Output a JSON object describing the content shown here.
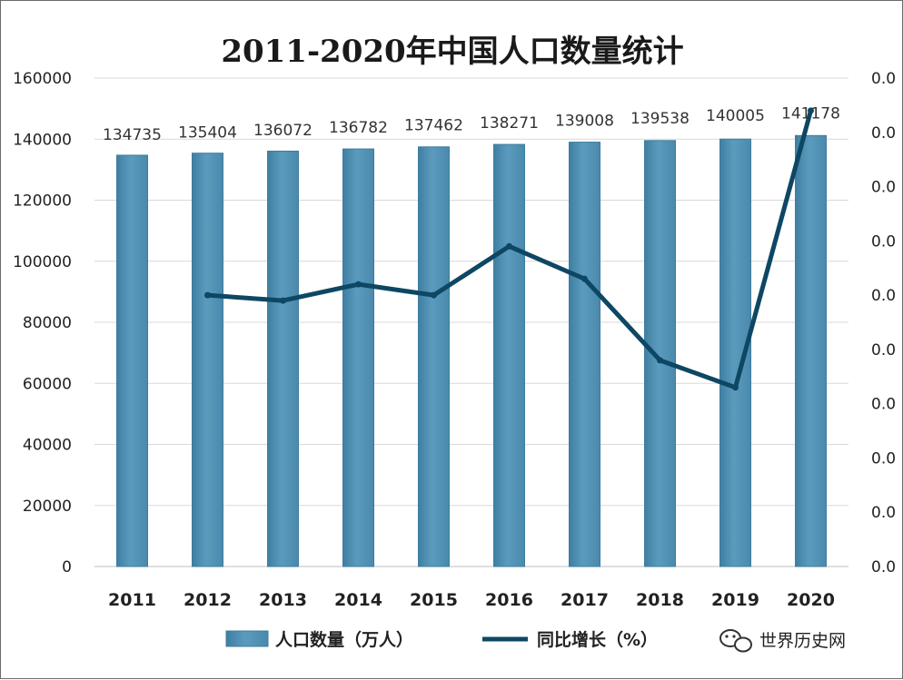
{
  "watermark": {
    "text": "世界历史网",
    "icon": "wechat-icon"
  },
  "colors": {
    "bar": "#5b9bbd",
    "bar_edge": "#3e7c9e",
    "line": "#0e4763",
    "grid": "#d9d9d9"
  },
  "chart_data": {
    "type": "bar",
    "title": "2011-2020年中国人口数量统计",
    "categories": [
      "2011",
      "2012",
      "2013",
      "2014",
      "2015",
      "2016",
      "2017",
      "2018",
      "2019",
      "2020"
    ],
    "series": [
      {
        "name": "人口数量（万人）",
        "type": "bar",
        "axis": "left",
        "values": [
          134735,
          135404,
          136072,
          136782,
          137462,
          138271,
          139008,
          139538,
          140005,
          141178
        ],
        "data_labels": [
          "134735",
          "135404",
          "136072",
          "136782",
          "137462",
          "138271",
          "139008",
          "139538",
          "140005",
          "141178"
        ]
      },
      {
        "name": "同比增长（%）",
        "type": "line",
        "axis": "right",
        "values": [
          null,
          0.005,
          0.0049,
          0.0052,
          0.005,
          0.0059,
          0.0053,
          0.0038,
          0.0033,
          0.0084
        ]
      }
    ],
    "y_left": {
      "lim": [
        0,
        160000
      ],
      "ticks": [
        "0",
        "20000",
        "40000",
        "60000",
        "80000",
        "100000",
        "120000",
        "140000",
        "160000"
      ]
    },
    "y_right": {
      "lim": [
        0,
        0.009
      ],
      "ticks": [
        "0.0",
        "0.0",
        "0.0",
        "0.0",
        "0.0",
        "0.0",
        "0.0",
        "0.0",
        "0.0",
        "0.0"
      ]
    },
    "xlabel": "",
    "ylabel": "",
    "grid": true,
    "legend": "bottom"
  }
}
